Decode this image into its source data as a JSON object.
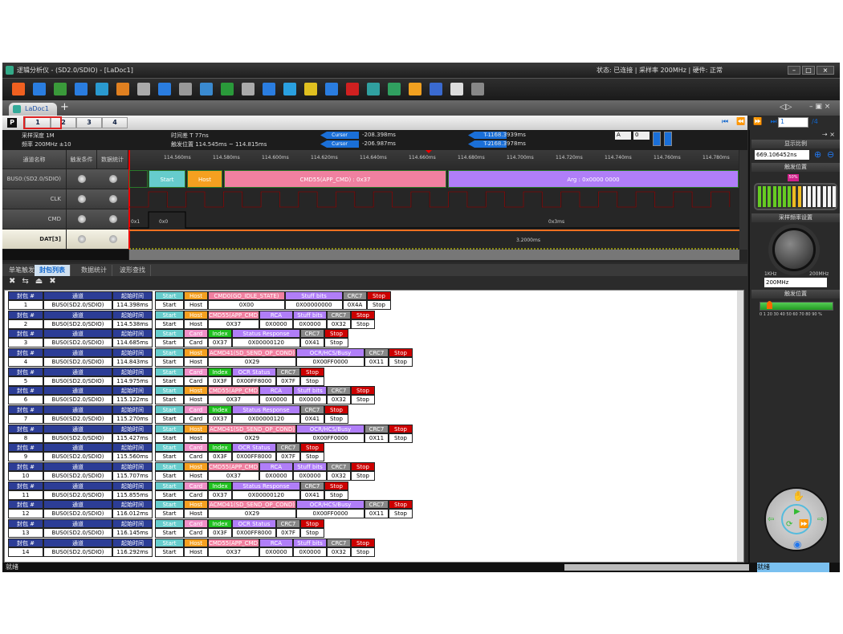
{
  "window": {
    "title": "逻辑分析仪 - (SD2.0/SDIO) - [LaDoc1]",
    "title_right": "状态: 已连接 | 采样率 200MHz | 硬件: 正常"
  },
  "toolbar": [
    "open-icon",
    "save-icon",
    "save-as-icon",
    "export-icon",
    "capture-icon",
    "settings-icon",
    "probe-icon",
    "add-channel-icon",
    "stack-icon",
    "table-icon",
    "layout-icon",
    "insert-icon",
    "decode-icon",
    "bus-icon",
    "marker-a-icon",
    "marker-b-icon",
    "marker-c-icon",
    "search-icon",
    "refresh-icon",
    "star-icon",
    "grid-icon",
    "play-video-icon",
    "mouse-icon"
  ],
  "doc_tab": "LaDoc1",
  "pages": [
    "1",
    "2",
    "3",
    "4"
  ],
  "page_input": "1",
  "page_total": "/4",
  "info": {
    "l1": "采样深度 1M",
    "l2": "频率 200MHz ±10",
    "c1": "时间差 T  77ns",
    "c2": "触发位置 114.545ms ~ 114.815ms",
    "cur_a": "Cursor",
    "cur_a_val": "-208.398ms",
    "cur_b": "Cursor",
    "cur_b_val": "-206.987ms",
    "cur_1": "T-1",
    "cur_1_val": "168.3939ms",
    "cur_2": "T-2",
    "cur_2_val": "168.3978ms",
    "sel_a": "A",
    "sel_b": "0"
  },
  "wave": {
    "headers": [
      "通道名称",
      "触发条件",
      "数据统计"
    ],
    "channels": [
      "BUS0:(SD2.0/SDIO)",
      "CLK",
      "CMD",
      "DAT[3]"
    ],
    "ticks": [
      "114.560ms",
      "114.580ms",
      "114.600ms",
      "114.620ms",
      "114.640ms",
      "114.660ms",
      "114.680ms",
      "114.700ms",
      "114.720ms",
      "114.740ms",
      "114.760ms",
      "114.780ms"
    ],
    "segments": [
      "Start",
      "Host",
      "CMD55(APP_CMD) : 0x37",
      "Arg : 0x0000 0000"
    ],
    "cmd_labels": [
      "0x1",
      "0x0",
      "0x3ms"
    ],
    "dat_label": "3.2000ms"
  },
  "bottom_tabs": [
    "单笔触发",
    "封包列表",
    "数据统计",
    "波形查找"
  ],
  "list_headers": [
    "封包 #",
    "通道",
    "起始时间"
  ],
  "colors": {
    "start": "#66cccc",
    "host": "#f5a020",
    "card": "#f090c8",
    "cmd": "#f080a0",
    "arg": "#b07ef8",
    "index": "#20c020",
    "crc": "#888888",
    "stop": "#cc0000",
    "header": "#2c3d96"
  },
  "packet_types": {
    "A": {
      "h": [
        "Start",
        "Host",
        "CMD0(GO_IDLE_STATE)",
        "Stuff bits",
        "CRC7",
        "Stop"
      ]
    },
    "B": {
      "h": [
        "Start",
        "Host",
        "CMD55(APP_CMD)",
        "RCA",
        "Stuff bits",
        "CRC7",
        "Stop"
      ]
    },
    "C": {
      "h": [
        "Start",
        "Card",
        "Index",
        "Status Response",
        "CRC7",
        "Stop"
      ]
    },
    "D": {
      "h": [
        "Start",
        "Host",
        "ACMD41(SD_SEND_OP_COND)",
        "OCR/HCS/Busy",
        "CRC7",
        "Stop"
      ]
    },
    "E": {
      "h": [
        "Start",
        "Card",
        "Index",
        "OCR Status",
        "CRC7",
        "Stop"
      ]
    }
  },
  "packets": [
    {
      "no": "1",
      "ch": "BUS0(SD2.0/SDIO)",
      "time": "114.398ms",
      "type": "A",
      "v": [
        "Start",
        "Host",
        "0X00",
        "0X00000000",
        "0X4A",
        "Stop"
      ]
    },
    {
      "no": "2",
      "ch": "BUS0(SD2.0/SDIO)",
      "time": "114.538ms",
      "type": "B",
      "v": [
        "Start",
        "Host",
        "0X37",
        "0X0000",
        "0X0000",
        "0X32",
        "Stop"
      ]
    },
    {
      "no": "3",
      "ch": "BUS0(SD2.0/SDIO)",
      "time": "114.685ms",
      "type": "C",
      "v": [
        "Start",
        "Card",
        "0X37",
        "0X00000120",
        "0X41",
        "Stop"
      ]
    },
    {
      "no": "4",
      "ch": "BUS0(SD2.0/SDIO)",
      "time": "114.843ms",
      "type": "D",
      "v": [
        "Start",
        "Host",
        "0X29",
        "0X00FF0000",
        "0X11",
        "Stop"
      ]
    },
    {
      "no": "5",
      "ch": "BUS0(SD2.0/SDIO)",
      "time": "114.975ms",
      "type": "E",
      "v": [
        "Start",
        "Card",
        "0X3F",
        "0X00FF8000",
        "0X7F",
        "Stop"
      ]
    },
    {
      "no": "6",
      "ch": "BUS0(SD2.0/SDIO)",
      "time": "115.122ms",
      "type": "B",
      "v": [
        "Start",
        "Host",
        "0X37",
        "0X0000",
        "0X0000",
        "0X32",
        "Stop"
      ]
    },
    {
      "no": "7",
      "ch": "BUS0(SD2.0/SDIO)",
      "time": "115.270ms",
      "type": "C",
      "v": [
        "Start",
        "Card",
        "0X37",
        "0X00000120",
        "0X41",
        "Stop"
      ]
    },
    {
      "no": "8",
      "ch": "BUS0(SD2.0/SDIO)",
      "time": "115.427ms",
      "type": "D",
      "v": [
        "Start",
        "Host",
        "0X29",
        "0X00FF0000",
        "0X11",
        "Stop"
      ]
    },
    {
      "no": "9",
      "ch": "BUS0(SD2.0/SDIO)",
      "time": "115.560ms",
      "type": "E",
      "v": [
        "Start",
        "Card",
        "0X3F",
        "0X00FF8000",
        "0X7F",
        "Stop"
      ]
    },
    {
      "no": "10",
      "ch": "BUS0(SD2.0/SDIO)",
      "time": "115.707ms",
      "type": "B",
      "v": [
        "Start",
        "Host",
        "0X37",
        "0X0000",
        "0X0000",
        "0X32",
        "Stop"
      ]
    },
    {
      "no": "11",
      "ch": "BUS0(SD2.0/SDIO)",
      "time": "115.855ms",
      "type": "C",
      "v": [
        "Start",
        "Card",
        "0X37",
        "0X00000120",
        "0X41",
        "Stop"
      ]
    },
    {
      "no": "12",
      "ch": "BUS0(SD2.0/SDIO)",
      "time": "116.012ms",
      "type": "D",
      "v": [
        "Start",
        "Host",
        "0X29",
        "0X00FF0000",
        "0X11",
        "Stop"
      ]
    },
    {
      "no": "13",
      "ch": "BUS0(SD2.0/SDIO)",
      "time": "116.145ms",
      "type": "E",
      "v": [
        "Start",
        "Card",
        "0X3F",
        "0X00FF8000",
        "0X7F",
        "Stop"
      ]
    },
    {
      "no": "14",
      "ch": "BUS0(SD2.0/SDIO)",
      "time": "116.292ms",
      "type": "B",
      "v": [
        "Start",
        "Host",
        "0X37",
        "0X0000",
        "0X0000",
        "0X32",
        "Stop"
      ]
    }
  ],
  "right": {
    "zoom_title": "显示比例",
    "zoom_value": "669.106452ns",
    "level_title": "触发位置",
    "level_badge": "50%",
    "level_fraction": 0.5,
    "rate_title": "采样频率设置",
    "rate_min": "1KHz",
    "rate_max": "200MHz",
    "rate_value": "200MHz",
    "trig_title": "触发位置",
    "trig_scale": "0 1 20 30 40 50 60 70 80 90 %"
  },
  "status": {
    "left": "就绪",
    "right": "就绪"
  }
}
